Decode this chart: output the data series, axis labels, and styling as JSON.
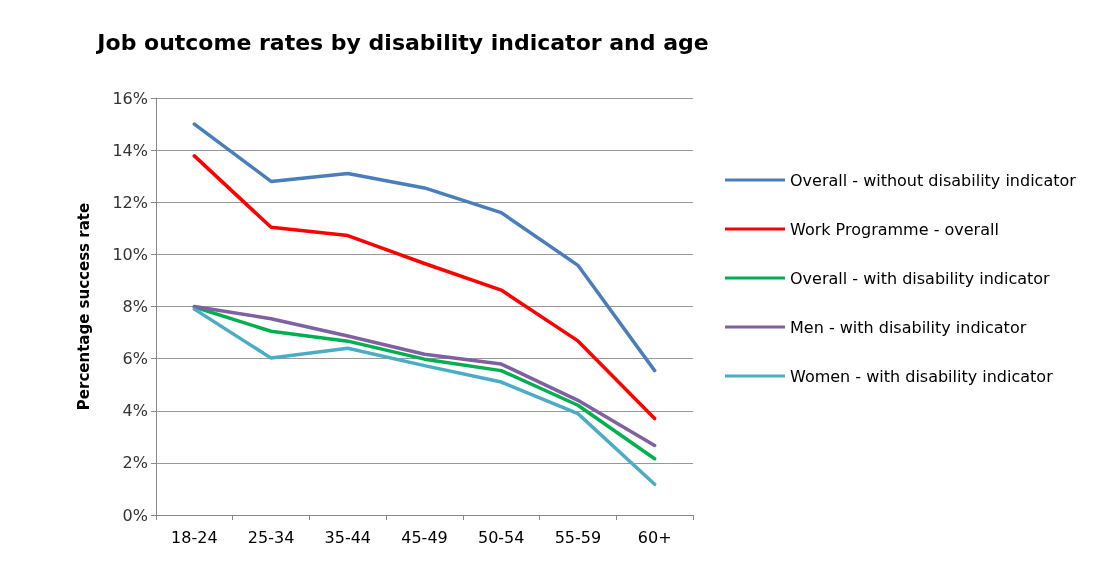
{
  "chart_data": {
    "type": "line",
    "title": "Job outcome rates by disability indicator and age",
    "ylabel": "Percentage success rate",
    "categories": [
      "18-24",
      "25-34",
      "35-44",
      "45-49",
      "50-54",
      "55-59",
      "60+"
    ],
    "series": [
      {
        "name": "Overall - without disability indicator",
        "color": "#4a7ebb",
        "values": [
          15.0,
          12.8,
          13.1,
          12.55,
          11.6,
          9.58,
          5.54
        ]
      },
      {
        "name": "Work Programme - overall",
        "color": "#ff0000",
        "values": [
          13.78,
          11.04,
          10.72,
          9.65,
          8.63,
          6.68,
          3.7
        ]
      },
      {
        "name": "Overall - with disability indicator",
        "color": "#00b050",
        "values": [
          7.98,
          7.05,
          6.67,
          5.98,
          5.54,
          4.21,
          2.16
        ]
      },
      {
        "name": "Men - with disability indicator",
        "color": "#7f60a0",
        "values": [
          8.0,
          7.53,
          6.87,
          6.17,
          5.79,
          4.4,
          2.67
        ]
      },
      {
        "name": "Women - with disability indicator",
        "color": "#4bacc6",
        "values": [
          7.9,
          6.02,
          6.4,
          5.73,
          5.1,
          3.89,
          1.18
        ]
      }
    ],
    "ylim": [
      0,
      16
    ],
    "yticks": [
      {
        "value": 0,
        "label": "0%"
      },
      {
        "value": 2,
        "label": "2%"
      },
      {
        "value": 4,
        "label": "4%"
      },
      {
        "value": 6,
        "label": "6%"
      },
      {
        "value": 8,
        "label": "8%"
      },
      {
        "value": 10,
        "label": "10%"
      },
      {
        "value": 12,
        "label": "12%"
      },
      {
        "value": 14,
        "label": "14%"
      },
      {
        "value": 16,
        "label": "16%"
      }
    ],
    "grid": "y",
    "legend": "right",
    "marker": "none",
    "line_style": "solid"
  }
}
